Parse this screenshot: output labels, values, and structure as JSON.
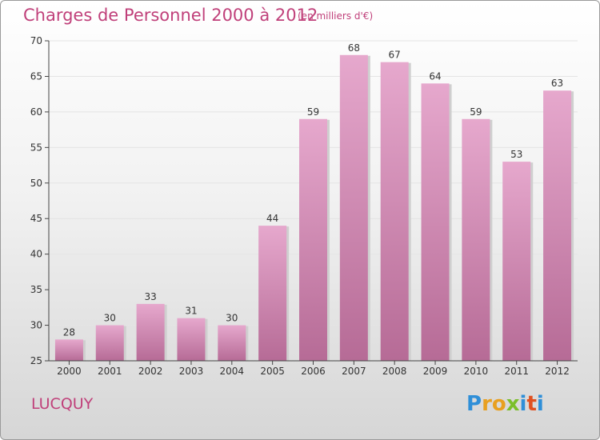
{
  "header": {
    "title": "Charges de Personnel 2000 à 2012",
    "subtitle": "(en milliers d'€)"
  },
  "commune": "LUCQUY",
  "logo": {
    "text": "Proxiti",
    "letters": [
      {
        "char": "P",
        "color": "#2f8fd8"
      },
      {
        "char": "r",
        "color": "#e8a020"
      },
      {
        "char": "o",
        "color": "#e8a020"
      },
      {
        "char": "x",
        "color": "#7bbf2a"
      },
      {
        "char": "i",
        "color": "#2f8fd8"
      },
      {
        "char": "t",
        "color": "#e05020"
      },
      {
        "char": "i",
        "color": "#2f8fd8"
      }
    ]
  },
  "colors": {
    "accent": "#c0407a",
    "bar_top": "#e6a8cd",
    "bar_bottom": "#b66b96",
    "axis": "#444444",
    "grid": "#e4e4e4"
  },
  "chart_data": {
    "type": "bar",
    "title": "Charges de Personnel 2000 à 2012",
    "subtitle": "(en milliers d'€)",
    "xlabel": "",
    "ylabel": "",
    "categories": [
      "2000",
      "2001",
      "2002",
      "2003",
      "2004",
      "2005",
      "2006",
      "2007",
      "2008",
      "2009",
      "2010",
      "2011",
      "2012"
    ],
    "values": [
      28,
      30,
      33,
      31,
      30,
      44,
      59,
      68,
      67,
      64,
      59,
      53,
      63
    ],
    "ylim": [
      25,
      70
    ],
    "yticks": [
      25,
      30,
      35,
      40,
      45,
      50,
      55,
      60,
      65,
      70
    ],
    "grid": true,
    "data_labels": true
  }
}
